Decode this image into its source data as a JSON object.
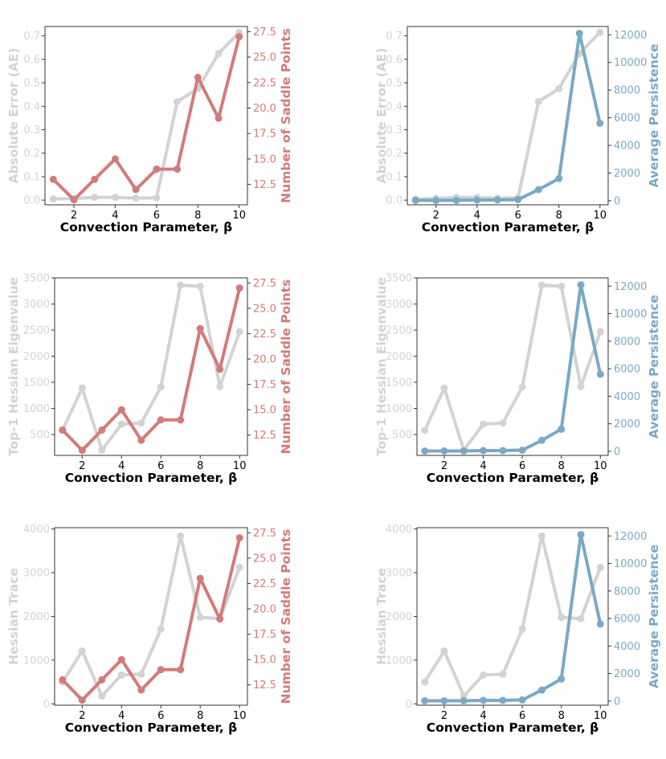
{
  "colors": {
    "grey": "#d3d3d3",
    "red": "#d47a7a",
    "blue": "#79a9c6",
    "axis": "#333333",
    "text": "#000000"
  },
  "chart_data": [
    {
      "type": "line",
      "xlabel": "Convection Parameter, β",
      "ylabel_left": "Absolute Error (AE)",
      "ylabel_right": "Number of Saddle Points",
      "x": [
        1,
        2,
        3,
        4,
        5,
        6,
        7,
        8,
        9,
        10
      ],
      "xticks": [
        "2",
        "4",
        "6",
        "8",
        "10"
      ],
      "ylim_left": [
        -0.02,
        0.74
      ],
      "yticks_left": [
        "0.0",
        "0.1",
        "0.2",
        "0.3",
        "0.4",
        "0.5",
        "0.6",
        "0.7"
      ],
      "ylim_right": [
        10.5,
        28.0
      ],
      "yticks_right": [
        "12.5",
        "15.0",
        "17.5",
        "20.0",
        "22.5",
        "25.0",
        "27.5"
      ],
      "series": [
        {
          "axis": "left",
          "color": "grey",
          "values": [
            0.005,
            0.007,
            0.012,
            0.012,
            0.008,
            0.01,
            0.42,
            0.475,
            0.625,
            0.715
          ]
        },
        {
          "axis": "right",
          "color": "red",
          "values": [
            13,
            11,
            13,
            15,
            12,
            14,
            14,
            23,
            19,
            27
          ]
        }
      ]
    },
    {
      "type": "line",
      "xlabel": "Convection Parameter, β",
      "ylabel_left": "Absolute Error (AE)",
      "ylabel_right": "Average Persistence",
      "x": [
        1,
        2,
        3,
        4,
        5,
        6,
        7,
        8,
        9,
        10
      ],
      "xticks": [
        "2",
        "4",
        "6",
        "8",
        "10"
      ],
      "ylim_left": [
        -0.02,
        0.74
      ],
      "yticks_left": [
        "0.0",
        "0.1",
        "0.2",
        "0.3",
        "0.4",
        "0.5",
        "0.6",
        "0.7"
      ],
      "ylim_right": [
        -300,
        12600
      ],
      "yticks_right": [
        "0",
        "2000",
        "4000",
        "6000",
        "8000",
        "10000",
        "12000"
      ],
      "series": [
        {
          "axis": "left",
          "color": "grey",
          "values": [
            0.005,
            0.007,
            0.012,
            0.012,
            0.008,
            0.01,
            0.42,
            0.475,
            0.625,
            0.715
          ]
        },
        {
          "axis": "right",
          "color": "blue",
          "values": [
            20,
            20,
            20,
            50,
            50,
            80,
            800,
            1600,
            12100,
            5600
          ]
        }
      ]
    },
    {
      "type": "line",
      "xlabel": "Convection Parameter, β",
      "ylabel_left": "Top-1 Hessian Eigenvalue",
      "ylabel_right": "Number of Saddle Points",
      "x": [
        1,
        2,
        3,
        4,
        5,
        6,
        7,
        8,
        9,
        10
      ],
      "xticks": [
        "2",
        "4",
        "6",
        "8",
        "10"
      ],
      "ylim_left": [
        100,
        3500
      ],
      "yticks_left": [
        "500",
        "1000",
        "1500",
        "2000",
        "2500",
        "3000",
        "3500"
      ],
      "ylim_right": [
        10.5,
        28.0
      ],
      "yticks_right": [
        "12.5",
        "15.0",
        "17.5",
        "20.0",
        "22.5",
        "25.0",
        "27.5"
      ],
      "series": [
        {
          "axis": "left",
          "color": "grey",
          "values": [
            580,
            1390,
            200,
            700,
            720,
            1410,
            3360,
            3340,
            1420,
            2470
          ]
        },
        {
          "axis": "right",
          "color": "red",
          "values": [
            13,
            11,
            13,
            15,
            12,
            14,
            14,
            23,
            19,
            27
          ]
        }
      ]
    },
    {
      "type": "line",
      "xlabel": "Convection Parameter, β",
      "ylabel_left": "Top-1 Hessian Eigenvalue",
      "ylabel_right": "Average Persistence",
      "x": [
        1,
        2,
        3,
        4,
        5,
        6,
        7,
        8,
        9,
        10
      ],
      "xticks": [
        "2",
        "4",
        "6",
        "8",
        "10"
      ],
      "ylim_left": [
        100,
        3500
      ],
      "yticks_left": [
        "500",
        "1000",
        "1500",
        "2000",
        "2500",
        "3000",
        "3500"
      ],
      "ylim_right": [
        -300,
        12600
      ],
      "yticks_right": [
        "0",
        "2000",
        "4000",
        "6000",
        "8000",
        "10000",
        "12000"
      ],
      "series": [
        {
          "axis": "left",
          "color": "grey",
          "values": [
            580,
            1390,
            200,
            700,
            720,
            1410,
            3360,
            3340,
            1420,
            2470
          ]
        },
        {
          "axis": "right",
          "color": "blue",
          "values": [
            20,
            20,
            20,
            50,
            50,
            80,
            800,
            1600,
            12100,
            5600
          ]
        }
      ]
    },
    {
      "type": "line",
      "xlabel": "Convection Parameter, β",
      "ylabel_left": "Hessian Trace",
      "ylabel_right": "Number of Saddle Points",
      "x": [
        1,
        2,
        3,
        4,
        5,
        6,
        7,
        8,
        9,
        10
      ],
      "xticks": [
        "2",
        "4",
        "6",
        "8",
        "10"
      ],
      "ylim_left": [
        -30,
        4030
      ],
      "yticks_left": [
        "0",
        "1000",
        "2000",
        "3000",
        "4000"
      ],
      "ylim_right": [
        10.5,
        28.0
      ],
      "yticks_right": [
        "12.5",
        "15.0",
        "17.5",
        "20.0",
        "22.5",
        "25.0",
        "27.5"
      ],
      "series": [
        {
          "axis": "left",
          "color": "grey",
          "values": [
            500,
            1210,
            180,
            660,
            680,
            1710,
            3840,
            1980,
            1950,
            3120
          ]
        },
        {
          "axis": "right",
          "color": "red",
          "values": [
            13,
            11,
            13,
            15,
            12,
            14,
            14,
            23,
            19,
            27
          ]
        }
      ]
    },
    {
      "type": "line",
      "xlabel": "Convection Parameter, β",
      "ylabel_left": "Hessian Trace",
      "ylabel_right": "Average Persistence",
      "x": [
        1,
        2,
        3,
        4,
        5,
        6,
        7,
        8,
        9,
        10
      ],
      "xticks": [
        "2",
        "4",
        "6",
        "8",
        "10"
      ],
      "ylim_left": [
        -30,
        4030
      ],
      "yticks_left": [
        "0",
        "1000",
        "2000",
        "3000",
        "4000"
      ],
      "ylim_right": [
        -300,
        12600
      ],
      "yticks_right": [
        "0",
        "2000",
        "4000",
        "6000",
        "8000",
        "10000",
        "12000"
      ],
      "series": [
        {
          "axis": "left",
          "color": "grey",
          "values": [
            500,
            1210,
            180,
            660,
            680,
            1710,
            3840,
            1980,
            1950,
            3120
          ]
        },
        {
          "axis": "right",
          "color": "blue",
          "values": [
            20,
            20,
            20,
            50,
            50,
            80,
            800,
            1600,
            12100,
            5600
          ]
        }
      ]
    }
  ]
}
